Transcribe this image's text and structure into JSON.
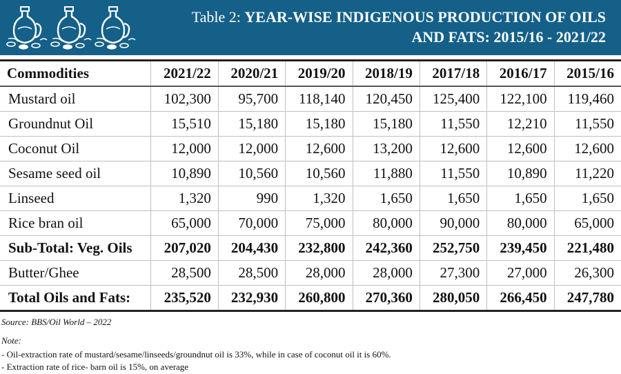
{
  "banner": {
    "title_lead": "Table 2: ",
    "title_bold": "YEAR-WISE INDIGENOUS PRODUCTION OF OILS AND FATS: 2015/16 - 2021/22",
    "icon": "oil-jar-with-olives-icon",
    "colors": {
      "background": "#146089",
      "text": "#ffffff"
    }
  },
  "table": {
    "headers": [
      "Commodities",
      "2021/22",
      "2020/21",
      "2019/20",
      "2018/19",
      "2017/18",
      "2016/17",
      "2015/16"
    ],
    "rows": [
      {
        "name": "Mustard oil",
        "bold": false,
        "values": [
          "102,300",
          "95,700",
          "118,140",
          "120,450",
          "125,400",
          "122,100",
          "119,460"
        ]
      },
      {
        "name": "Groundnut Oil",
        "bold": false,
        "values": [
          "15,510",
          "15,180",
          "15,180",
          "15,180",
          "11,550",
          "12,210",
          "11,550"
        ]
      },
      {
        "name": "Coconut Oil",
        "bold": false,
        "values": [
          "12,000",
          "12,000",
          "12,600",
          "13,200",
          "12,600",
          "12,600",
          "12,600"
        ]
      },
      {
        "name": "Sesame seed oil",
        "bold": false,
        "values": [
          "10,890",
          "10,560",
          "10,560",
          "11,880",
          "11,550",
          "10,890",
          "11,220"
        ]
      },
      {
        "name": "Linseed",
        "bold": false,
        "values": [
          "1,320",
          "990",
          "1,320",
          "1,650",
          "1,650",
          "1,650",
          "1,650"
        ]
      },
      {
        "name": "Rice bran oil",
        "bold": false,
        "values": [
          "65,000",
          "70,000",
          "75,000",
          "80,000",
          "90,000",
          "80,000",
          "65,000"
        ]
      },
      {
        "name": "Sub-Total: Veg. Oils",
        "bold": true,
        "values": [
          "207,020",
          "204,430",
          "232,800",
          "242,360",
          "252,750",
          "239,450",
          "221,480"
        ]
      },
      {
        "name": "Butter/Ghee",
        "bold": false,
        "values": [
          "28,500",
          "28,500",
          "28,000",
          "28,000",
          "27,300",
          "27,000",
          "26,300"
        ]
      },
      {
        "name": "Total Oils and Fats:",
        "bold": true,
        "values": [
          "235,520",
          "232,930",
          "260,800",
          "270,360",
          "280,050",
          "266,450",
          "247,780"
        ]
      }
    ]
  },
  "source": "Source: BBS/Oil World – 2022",
  "note": {
    "heading": "Note:",
    "lines": [
      "- Oil-extraction rate of mustard/sesame/linseeds/groundnut oil is 33%, while in case of coconut oil it is 60%.",
      "- Extraction rate of rice- barn oil is 15%, on average"
    ]
  }
}
